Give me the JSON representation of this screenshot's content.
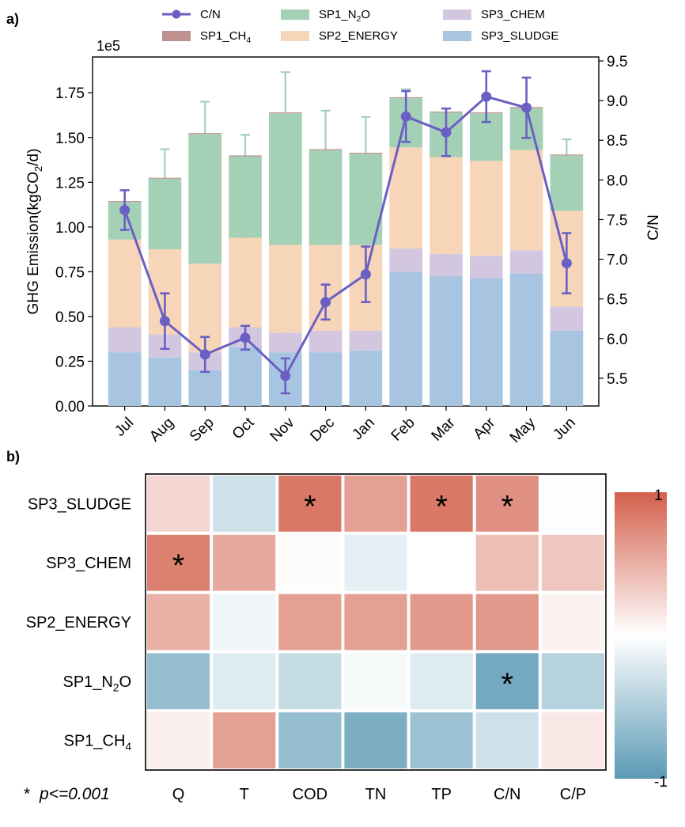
{
  "panel_a": {
    "label": "a)",
    "y_exponent": "1e5",
    "legend": [
      {
        "key": "cn",
        "text": "C/N",
        "sub": "",
        "tail": ""
      },
      {
        "key": "sp1_n2o",
        "text": "SP1_N",
        "sub": "2",
        "tail": "O"
      },
      {
        "key": "sp3_chem",
        "text": "SP3_CHEM",
        "sub": "",
        "tail": ""
      },
      {
        "key": "sp1_ch4",
        "text": "SP1_CH",
        "sub": "4",
        "tail": ""
      },
      {
        "key": "sp2_energy",
        "text": "SP2_ENERGY",
        "sub": "",
        "tail": ""
      },
      {
        "key": "sp3_sludge",
        "text": "SP3_SLUDGE",
        "sub": "",
        "tail": ""
      }
    ]
  },
  "panel_b": {
    "label": "b)",
    "footnote_star": "*",
    "footnote_text": "p<=0.001",
    "colorbar_max": "1",
    "colorbar_min": "-1",
    "star_symbol": "*"
  },
  "chart_data": [
    {
      "type": "bar",
      "stacked": true,
      "categories": [
        "Jul",
        "Aug",
        "Sep",
        "Oct",
        "Nov",
        "Dec",
        "Jan",
        "Feb",
        "Mar",
        "Apr",
        "May",
        "Jun"
      ],
      "ylabel": {
        "text": "GHG Emission(kgCO",
        "sub": "2",
        "tail": "/d)"
      },
      "y2label": "C/N",
      "ylim": [
        0,
        195000
      ],
      "y2lim": [
        5.15,
        9.55
      ],
      "yticks": [
        0,
        25000,
        50000,
        75000,
        100000,
        125000,
        150000,
        175000
      ],
      "ytick_labels": [
        "0.00",
        "0.25",
        "0.50",
        "0.75",
        "1.00",
        "1.25",
        "1.50",
        "1.75"
      ],
      "y2ticks": [
        5.5,
        6.0,
        6.5,
        7.0,
        7.5,
        8.0,
        8.5,
        9.0,
        9.5
      ],
      "y2tick_labels": [
        "5.5",
        "6.0",
        "6.5",
        "7.0",
        "7.5",
        "8.0",
        "8.5",
        "9.0",
        "9.5"
      ],
      "colors": {
        "sp3_sludge": "#a7c4e0",
        "sp3_chem": "#d3c7e0",
        "sp2_energy": "#f7d5b8",
        "sp1_n2o": "#a4d0b6",
        "sp1_ch4": "#c08f8f",
        "cn": "#6a60c4"
      },
      "series": [
        {
          "key": "sp3_sludge",
          "name": "SP3_SLUDGE",
          "values": [
            30000,
            27000,
            20000,
            33000,
            30000,
            30000,
            31000,
            75000,
            72500,
            71500,
            74000,
            42000
          ],
          "errors": [
            1500,
            1500,
            1200,
            1500,
            2000,
            8000,
            5000,
            6000,
            3000,
            4000,
            2000,
            9000
          ]
        },
        {
          "key": "sp3_chem",
          "name": "SP3_CHEM",
          "values": [
            14000,
            13000,
            10000,
            11000,
            11000,
            12000,
            11000,
            13000,
            12500,
            12500,
            13000,
            13500
          ],
          "errors": [
            1500,
            2500,
            2500,
            1500,
            1500,
            1200,
            2000,
            6000,
            1500,
            1500,
            1500,
            2500
          ]
        },
        {
          "key": "sp2_energy",
          "name": "SP2_ENERGY",
          "values": [
            49000,
            47500,
            49500,
            50000,
            49000,
            48000,
            48000,
            56500,
            54000,
            53000,
            56000,
            53500
          ],
          "errors": [
            2000,
            2000,
            3000,
            2000,
            1000,
            1500,
            2000,
            2000,
            2000,
            2000,
            3500,
            2500
          ]
        },
        {
          "key": "sp1_n2o",
          "name": "SP1_N2O",
          "values": [
            21000,
            39500,
            72500,
            45500,
            73500,
            53000,
            51000,
            27500,
            25000,
            26500,
            23500,
            31000
          ],
          "errors": [
            0,
            16500,
            18000,
            12000,
            23000,
            22000,
            20500,
            5000,
            0,
            0,
            0,
            9000
          ]
        },
        {
          "key": "sp1_ch4",
          "name": "SP1_CH4",
          "values": [
            500,
            500,
            500,
            500,
            500,
            500,
            500,
            500,
            500,
            500,
            500,
            500
          ],
          "errors": [
            0,
            0,
            0,
            0,
            0,
            0,
            0,
            0,
            0,
            0,
            0,
            0
          ]
        }
      ],
      "line": {
        "key": "cn",
        "name": "C/N",
        "values": [
          7.62,
          6.22,
          5.8,
          6.01,
          5.53,
          6.46,
          6.81,
          8.8,
          8.6,
          9.05,
          8.91,
          6.95
        ],
        "errors": [
          0.25,
          0.35,
          0.22,
          0.15,
          0.22,
          0.22,
          0.35,
          0.32,
          0.3,
          0.32,
          0.38,
          0.38
        ]
      }
    },
    {
      "type": "heatmap",
      "rows": [
        {
          "label": "SP3_SLUDGE",
          "sub": "",
          "tail": ""
        },
        {
          "label": "SP3_CHEM",
          "sub": "",
          "tail": ""
        },
        {
          "label": "SP2_ENERGY",
          "sub": "",
          "tail": ""
        },
        {
          "label": "SP1_N",
          "sub": "2",
          "tail": "O"
        },
        {
          "label": "SP1_CH",
          "sub": "4",
          "tail": ""
        }
      ],
      "columns": [
        "Q",
        "T",
        "COD",
        "TN",
        "TP",
        "C/N",
        "C/P"
      ],
      "values": [
        [
          0.25,
          -0.3,
          0.85,
          0.6,
          0.85,
          0.7,
          -0.02
        ],
        [
          0.8,
          0.55,
          0.02,
          -0.15,
          0.0,
          0.4,
          0.35
        ],
        [
          0.5,
          -0.1,
          0.6,
          0.6,
          0.65,
          0.65,
          0.08
        ],
        [
          -0.65,
          -0.2,
          -0.35,
          -0.05,
          -0.2,
          -0.85,
          -0.45
        ],
        [
          0.1,
          0.6,
          -0.65,
          -0.8,
          -0.6,
          -0.3,
          0.15
        ]
      ],
      "significant": [
        [
          false,
          false,
          true,
          false,
          true,
          true,
          false
        ],
        [
          true,
          false,
          false,
          false,
          false,
          false,
          false
        ],
        [
          false,
          false,
          false,
          false,
          false,
          false,
          false
        ],
        [
          false,
          false,
          false,
          false,
          false,
          true,
          false
        ],
        [
          false,
          false,
          false,
          false,
          false,
          false,
          false
        ]
      ],
      "color_scale": {
        "min": -1,
        "max": 1,
        "low": "#5b9ab5",
        "mid": "#ffffff",
        "high": "#d3604c"
      }
    }
  ]
}
